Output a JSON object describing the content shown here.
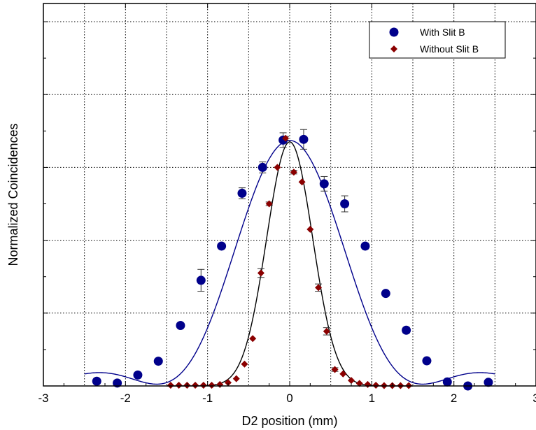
{
  "chart_data": {
    "type": "scatter",
    "xlabel": "D2 position (mm)",
    "ylabel": "Normalized Coincidences",
    "xlim": [
      -3,
      3
    ],
    "ylim": [
      0,
      1.05
    ],
    "x_ticks": [
      "-3",
      "-2",
      "-1",
      "0",
      "1",
      "2",
      "3"
    ],
    "grid": "dotted",
    "legend_position": "top-right",
    "colors": {
      "with_slit": "#00008b",
      "without_slit": "#8b0000",
      "fit_wide": "#00008b",
      "fit_narrow": "#000000"
    },
    "series": [
      {
        "name": "With Slit B",
        "marker": "circle",
        "x": [
          -2.35,
          -2.1,
          -1.85,
          -1.6,
          -1.33,
          -1.08,
          -0.83,
          -0.58,
          -0.33,
          -0.08,
          0.17,
          0.42,
          0.67,
          0.92,
          1.17,
          1.42,
          1.67,
          1.92,
          2.17,
          2.42
        ],
        "y": [
          0.013,
          0.008,
          0.03,
          0.068,
          0.166,
          0.29,
          0.384,
          0.529,
          0.6,
          0.675,
          0.677,
          0.555,
          0.5,
          0.384,
          0.254,
          0.153,
          0.069,
          0.011,
          0,
          0.01
        ],
        "err": [
          0,
          0,
          0,
          0.005,
          0.005,
          0.03,
          0.007,
          0.015,
          0.015,
          0.02,
          0.027,
          0.02,
          0.022,
          0.008,
          0.006,
          0.008,
          0,
          0,
          0,
          0
        ]
      },
      {
        "name": "Without Slit B",
        "marker": "diamond",
        "x": [
          -1.45,
          -1.35,
          -1.25,
          -1.15,
          -1.05,
          -0.95,
          -0.85,
          -0.75,
          -0.65,
          -0.55,
          -0.45,
          -0.35,
          -0.25,
          -0.15,
          -0.05,
          0.05,
          0.15,
          0.25,
          0.35,
          0.45,
          0.55,
          0.65,
          0.75,
          0.85,
          0.95,
          1.05,
          1.15,
          1.25,
          1.35,
          1.45
        ],
        "y": [
          0.002,
          0.002,
          0.002,
          0.002,
          0.002,
          0.002,
          0.004,
          0.009,
          0.02,
          0.06,
          0.13,
          0.31,
          0.5,
          0.6,
          0.68,
          0.587,
          0.56,
          0.43,
          0.27,
          0.15,
          0.045,
          0.033,
          0.015,
          0.007,
          0.004,
          0.002,
          0.001,
          0.001,
          0.001,
          0.001
        ],
        "err": [
          0,
          0,
          0,
          0,
          0,
          0,
          0,
          0,
          0,
          0,
          0,
          0.012,
          0.005,
          0,
          0.005,
          0.005,
          0,
          0,
          0.01,
          0.01,
          0.005,
          0,
          0,
          0,
          0,
          0,
          0,
          0,
          0,
          0
        ]
      }
    ],
    "fits": [
      {
        "series": "With Slit B",
        "type": "sinc2",
        "amplitude": 0.669,
        "width": 1.62,
        "offset": 0.005,
        "x_range": [
          -2.5,
          2.5
        ]
      },
      {
        "series": "Without Slit B",
        "type": "gaussian",
        "amplitude": 0.67,
        "sigma": 0.28,
        "x_range": [
          -1.5,
          1.5
        ]
      }
    ]
  },
  "legend": [
    {
      "label": "With Slit B",
      "marker": "circle"
    },
    {
      "label": "Without Slit B",
      "marker": "diamond"
    }
  ]
}
